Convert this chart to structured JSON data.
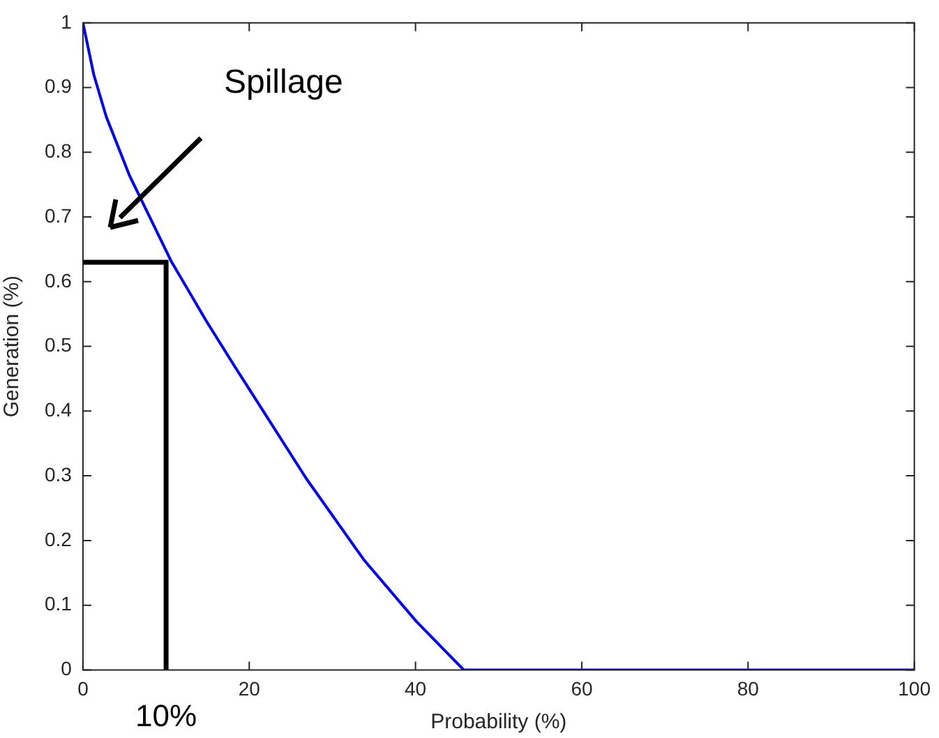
{
  "chart_data": {
    "type": "line",
    "xlabel": "Probability (%)",
    "ylabel": "Generation (%)",
    "xlim": [
      0,
      100
    ],
    "xticks": [
      0,
      20,
      40,
      60,
      80,
      100
    ],
    "ylim": [
      0,
      1
    ],
    "yticks": [
      0,
      0.1,
      0.2,
      0.3,
      0.4,
      0.5,
      0.6,
      0.7,
      0.8,
      0.9,
      1
    ],
    "grid": false,
    "legend": false,
    "marker": "none",
    "line_style": "solid",
    "series": [
      {
        "color": "#0000ff",
        "x": [
          0,
          1.3,
          2.8,
          5.6,
          10.6,
          14.8,
          18.3,
          20,
          26.9,
          33.8,
          40.1,
          45.8,
          100
        ],
        "values": [
          1,
          0.92,
          0.855,
          0.764,
          0.632,
          0.54,
          0.468,
          0.434,
          0.295,
          0.17,
          0.075,
          0,
          0
        ]
      },
      {
        "color": "#000000",
        "x": [
          0,
          10,
          10
        ],
        "values": [
          0.63,
          0.63,
          0
        ]
      }
    ],
    "annotations": [
      "Spillage",
      {
        "text": "10%",
        "x": 10,
        "y": 0
      }
    ]
  }
}
